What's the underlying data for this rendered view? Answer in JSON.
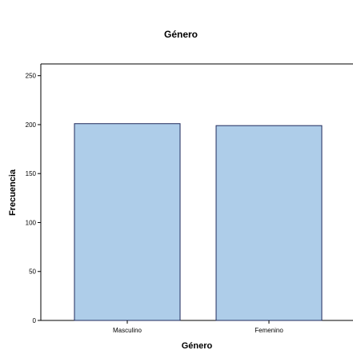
{
  "chart_data": {
    "type": "bar",
    "title": "Género",
    "xlabel": "Género",
    "ylabel": "Frecuencia",
    "categories": [
      "Masculino",
      "Femenino"
    ],
    "values": [
      201,
      199
    ],
    "ylim": [
      0,
      262
    ],
    "yticks": [
      0,
      50,
      100,
      150,
      200,
      250
    ],
    "grid": false,
    "legend": "none",
    "colors": {
      "bar_fill": "#aecde9",
      "bar_stroke": "#1f2a5c",
      "axis": "#000000"
    }
  }
}
